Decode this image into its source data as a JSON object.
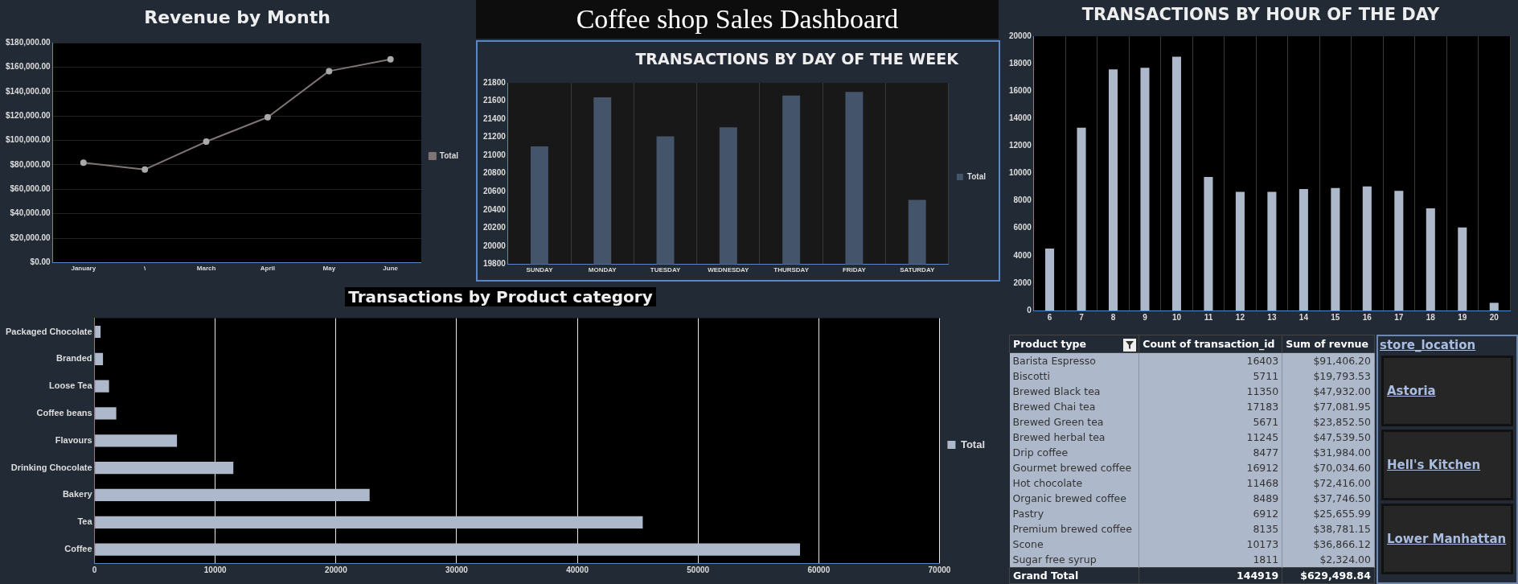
{
  "chart_data": [
    {
      "type": "line",
      "title": "Revenue by Month",
      "categories": [
        "January",
        "\\",
        "March",
        "April",
        "May",
        "June"
      ],
      "series": [
        {
          "name": "Total",
          "color": "#7f7373",
          "values": [
            81700,
            76200,
            99000,
            118900,
            156700,
            166400
          ]
        }
      ],
      "ylim": [
        0,
        180000
      ],
      "yticks": [
        {
          "value": 0,
          "label": "$0.00"
        },
        {
          "value": 20000,
          "label": "$20,000.00"
        },
        {
          "value": 40000,
          "label": "$40,000.00"
        },
        {
          "value": 60000,
          "label": "$60,000.00"
        },
        {
          "value": 80000,
          "label": "$80,000.00"
        },
        {
          "value": 100000,
          "label": "$100,000.00"
        },
        {
          "value": 120000,
          "label": "$120,000.00"
        },
        {
          "value": 140000,
          "label": "$140,000.00"
        },
        {
          "value": 160000,
          "label": "$160,000.00"
        },
        {
          "value": 180000,
          "label": "$180,000.00"
        }
      ],
      "grid": "y",
      "legend": "right",
      "marker": "circle"
    },
    {
      "type": "other",
      "title": "Coffee shop Sales Dashboard"
    },
    {
      "type": "bar",
      "title": "TRANSACTIONS BY DAY OF THE WEEK",
      "categories": [
        "SUNDAY",
        "MONDAY",
        "TUESDAY",
        "WEDNESDAY",
        "THURSDAY",
        "FRIDAY",
        "SATURDAY"
      ],
      "series": [
        {
          "name": "Total",
          "color": "#44546a",
          "values": [
            21100,
            21640,
            21210,
            21310,
            21660,
            21700,
            20510
          ]
        }
      ],
      "ylim": [
        19800,
        21800
      ],
      "yticks": [
        19800,
        20000,
        20200,
        20400,
        20600,
        20800,
        21000,
        21200,
        21400,
        21600,
        21800
      ],
      "grid": "x",
      "legend": "right"
    },
    {
      "type": "bar",
      "title": "TRANSACTIONS BY HOUR OF THE DAY",
      "categories": [
        "6",
        "7",
        "8",
        "9",
        "10",
        "11",
        "12",
        "13",
        "14",
        "15",
        "16",
        "17",
        "18",
        "19",
        "20"
      ],
      "series": [
        {
          "color": "#adb9ca",
          "values": [
            4510,
            13330,
            17580,
            17700,
            18500,
            9730,
            8650,
            8650,
            8860,
            8930,
            9050,
            8720,
            7450,
            6060,
            560
          ]
        }
      ],
      "ylim": [
        0,
        20000
      ],
      "yticks": [
        0,
        2000,
        4000,
        6000,
        8000,
        10000,
        12000,
        14000,
        16000,
        18000,
        20000
      ],
      "grid": "x"
    },
    {
      "type": "bar",
      "orientation": "horizontal",
      "title": "Transactions by Product category",
      "categories": [
        "Packaged Chocolate",
        "Branded",
        "Loose Tea",
        "Coffee beans",
        "Flavours",
        "Drinking Chocolate",
        "Bakery",
        "Tea",
        "Coffee"
      ],
      "series": [
        {
          "name": "Total",
          "color": "#adb9ca",
          "values": [
            500,
            700,
            1200,
            1800,
            6830,
            11500,
            22790,
            45420,
            58450
          ]
        }
      ],
      "xlim": [
        0,
        70000
      ],
      "xticks": [
        0,
        10000,
        20000,
        30000,
        40000,
        50000,
        60000,
        70000
      ],
      "grid": "x",
      "legend": "right"
    },
    {
      "type": "other",
      "xlabel": "Product type",
      "categories": [
        "Barista Espresso",
        "Biscotti",
        "Brewed Black tea",
        "Brewed Chai tea",
        "Brewed Green tea",
        "Brewed herbal tea",
        "Drip coffee",
        "Gourmet brewed coffee",
        "Hot chocolate",
        "Organic brewed coffee",
        "Pastry",
        "Premium brewed coffee",
        "Scone",
        "Sugar free syrup"
      ],
      "series": [
        {
          "name": "Count of transaction_id",
          "values": [
            16403,
            5711,
            11350,
            17183,
            5671,
            11245,
            8477,
            16912,
            11468,
            8489,
            6912,
            8135,
            10173,
            1811
          ]
        },
        {
          "name": "Sum of revnue",
          "values": [
            91406.2,
            19793.53,
            47932.0,
            77081.95,
            23852.5,
            47539.5,
            31984.0,
            70034.6,
            72416.0,
            37746.5,
            25655.99,
            38781.15,
            36866.12,
            2324.0
          ],
          "value_labels": [
            "$91,406.20",
            "$19,793.53",
            "$47,932.00",
            "$77,081.95",
            "$23,852.50",
            "$47,539.50",
            "$31,984.00",
            "$70,034.60",
            "$72,416.00",
            "$37,746.50",
            "$25,655.99",
            "$38,781.15",
            "$36,866.12",
            "$2,324.00"
          ]
        }
      ],
      "data_labels": true,
      "annotations": [
        "Grand Total"
      ],
      "totals": [
        "144919",
        "$629,498.84"
      ]
    },
    {
      "type": "other",
      "title": "store_location",
      "annotations": [
        "Astoria",
        "Hell's Kitchen",
        "Lower Manhattan"
      ]
    }
  ]
}
